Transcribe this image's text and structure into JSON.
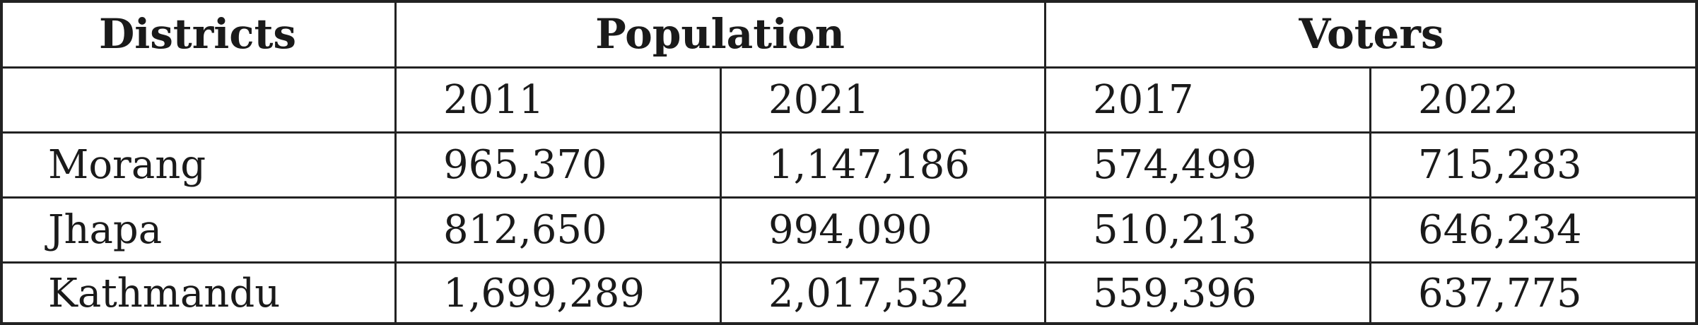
{
  "table": {
    "header": [
      "Districts",
      "Population",
      "Voters"
    ],
    "subheader": [
      "2011",
      "2021",
      "2017",
      "2022"
    ],
    "rows": [
      [
        "Morang",
        "965,370",
        "1,147,186",
        "574,499",
        "715,283"
      ],
      [
        "Jhapa",
        "812,650",
        "994,090",
        "510,213",
        "646,234"
      ],
      [
        "Kathmandu",
        "1,699,289",
        "2,017,532",
        "559,396",
        "637,775"
      ]
    ]
  }
}
